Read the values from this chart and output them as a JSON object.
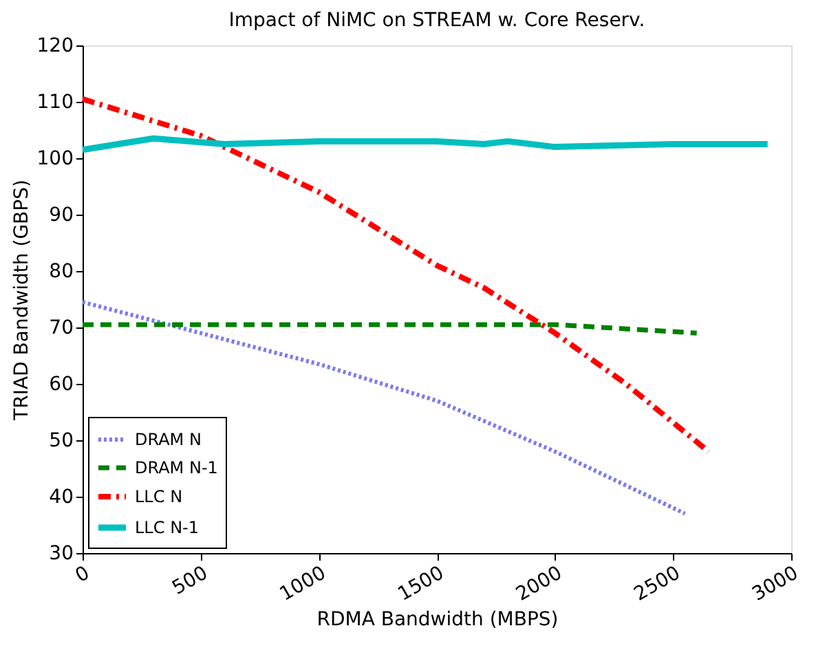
{
  "chart_data": {
    "type": "line",
    "title": "Impact of NiMC on STREAM w. Core Reserv.",
    "xlabel": "RDMA Bandwidth (MBPS)",
    "ylabel": "TRIAD Bandwidth (GBPS)",
    "xlim": [
      0,
      3000
    ],
    "xticks": [
      0,
      500,
      1000,
      1500,
      2000,
      2500,
      3000
    ],
    "ylim": [
      30,
      120
    ],
    "yticks": [
      30,
      40,
      50,
      60,
      70,
      80,
      90,
      100,
      110,
      120
    ],
    "grid": false,
    "legend": "bottom left",
    "marker": "none",
    "series": [
      {
        "name": "DRAM N",
        "color": "#7b7bf0",
        "line_style": "dotted",
        "x": [
          0,
          500,
          1000,
          1500,
          2000,
          2550
        ],
        "values": [
          74.5,
          69,
          63.5,
          57,
          48,
          37
        ]
      },
      {
        "name": "DRAM N-1",
        "color": "#008000",
        "line_style": "dashed",
        "x": [
          0,
          500,
          1000,
          1500,
          2000,
          2600
        ],
        "values": [
          70.5,
          70.5,
          70.5,
          70.5,
          70.5,
          69
        ]
      },
      {
        "name": "LLC N",
        "color": "#ff0000",
        "line_style": "dashdot",
        "x": [
          0,
          500,
          1000,
          1500,
          1700,
          2000,
          2300,
          2650
        ],
        "values": [
          110.5,
          104,
          94,
          81,
          77,
          69,
          60,
          48
        ]
      },
      {
        "name": "LLC N-1",
        "color": "#00bfbf",
        "line_style": "solid",
        "x": [
          0,
          300,
          600,
          1000,
          1500,
          1700,
          1800,
          2000,
          2500,
          2900
        ],
        "values": [
          101.5,
          103.5,
          102.5,
          103,
          103,
          102.5,
          103,
          102,
          102.5,
          102.5
        ]
      }
    ]
  }
}
